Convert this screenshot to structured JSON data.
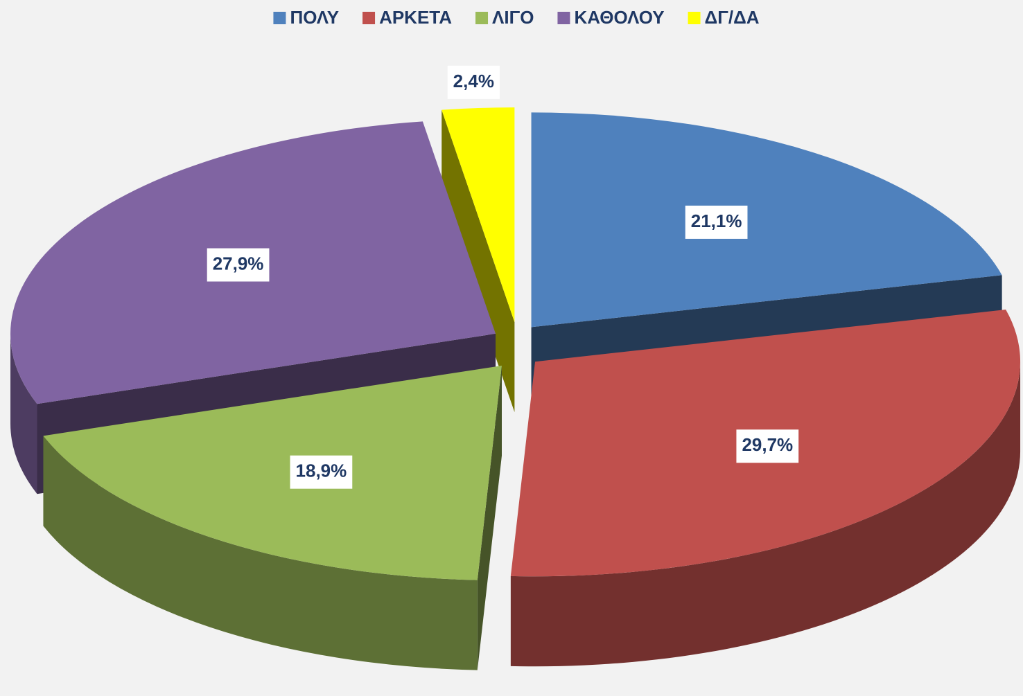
{
  "chart_data": {
    "type": "pie",
    "categories": [
      "ΠΟΛΥ",
      "ΑΡΚΕΤΑ",
      "ΛΙΓΟ",
      "ΚΑΘΟΛΟΥ",
      "ΔΓ/ΔΑ"
    ],
    "values": [
      21.1,
      29.7,
      18.9,
      27.9,
      2.4
    ],
    "value_labels": [
      "21,1%",
      "29,7%",
      "18,9%",
      "27,9%",
      "2,4%"
    ],
    "colors": [
      "#4f81bd",
      "#c0504d",
      "#9bbb59",
      "#8064a2",
      "#ffff00"
    ],
    "legend": "top"
  }
}
